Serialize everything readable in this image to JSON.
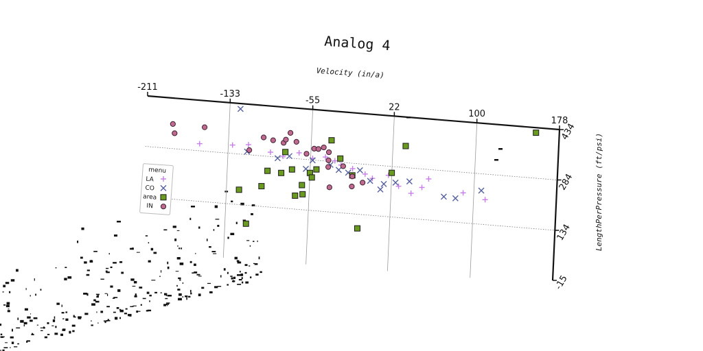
{
  "chart_data": {
    "type": "scatter",
    "title": "Analog 4",
    "xlabel": "Velocity (in/a)",
    "ylabel": "LengthPerPressure (ft/psi)",
    "x_ticks": [
      "-211",
      "-133",
      "-55",
      "22",
      "100",
      "178"
    ],
    "y_ticks": [
      "-15",
      "134",
      "284",
      "434"
    ],
    "xlim": [
      -211,
      178
    ],
    "ylim": [
      -15,
      434
    ],
    "grid": true,
    "x_axis_position": "top",
    "y_axis_position": "right",
    "legend": {
      "title": "menu",
      "placement": "left"
    },
    "colors": {
      "LA": "#c77ee8",
      "CO": "#55609e",
      "area": "#6a9a1f",
      "IN": "#c06a8f"
    },
    "series": [
      {
        "name": "LA",
        "marker": "plus",
        "x": [
          -160,
          -129,
          -114,
          -93,
          -81,
          -66,
          -53,
          -41,
          -32,
          -26,
          -15,
          -3,
          4,
          19,
          29,
          41,
          51,
          57,
          90,
          111
        ],
        "y": [
          305,
          309,
          314,
          297,
          288,
          302,
          289,
          296,
          287,
          276,
          268,
          255,
          244,
          257,
          227,
          209,
          229,
          256,
          223,
          208
        ]
      },
      {
        "name": "CO",
        "marker": "x",
        "x": [
          -123,
          -115,
          -86,
          -75,
          -59,
          -53,
          -36,
          -28,
          -19,
          -8,
          2,
          12,
          15,
          26,
          39,
          72,
          83,
          107
        ],
        "y": [
          418,
          293,
          281,
          290,
          256,
          283,
          274,
          261,
          255,
          265,
          236,
          213,
          230,
          237,
          244,
          207,
          205,
          234
        ]
      },
      {
        "name": "area",
        "marker": "square",
        "x": [
          -196,
          -113,
          -121,
          -100,
          -95,
          -82,
          -79,
          -72,
          -68,
          -62,
          -61,
          -55,
          -53,
          -49,
          -36,
          -27,
          -15,
          -8,
          22,
          34,
          156
        ],
        "y": [
          191,
          79,
          178,
          194,
          241,
          238,
          301,
          251,
          174,
          207,
          180,
          245,
          232,
          257,
          347,
          295,
          248,
          92,
          265,
          348,
          419
        ]
      },
      {
        "name": "IN",
        "marker": "circle",
        "x": [
          -186,
          -184,
          -156,
          -113,
          -100,
          -91,
          -81,
          -79,
          -75,
          -69,
          -59,
          -52,
          -48,
          -43,
          -38,
          -36,
          -38,
          -38,
          -24,
          -15,
          -15,
          -5
        ],
        "y": [
          357,
          330,
          355,
          298,
          339,
          333,
          328,
          338,
          359,
          334,
          301,
          318,
          318,
          324,
          311,
          207,
          267,
          287,
          273,
          245,
          215,
          229
        ]
      }
    ]
  }
}
